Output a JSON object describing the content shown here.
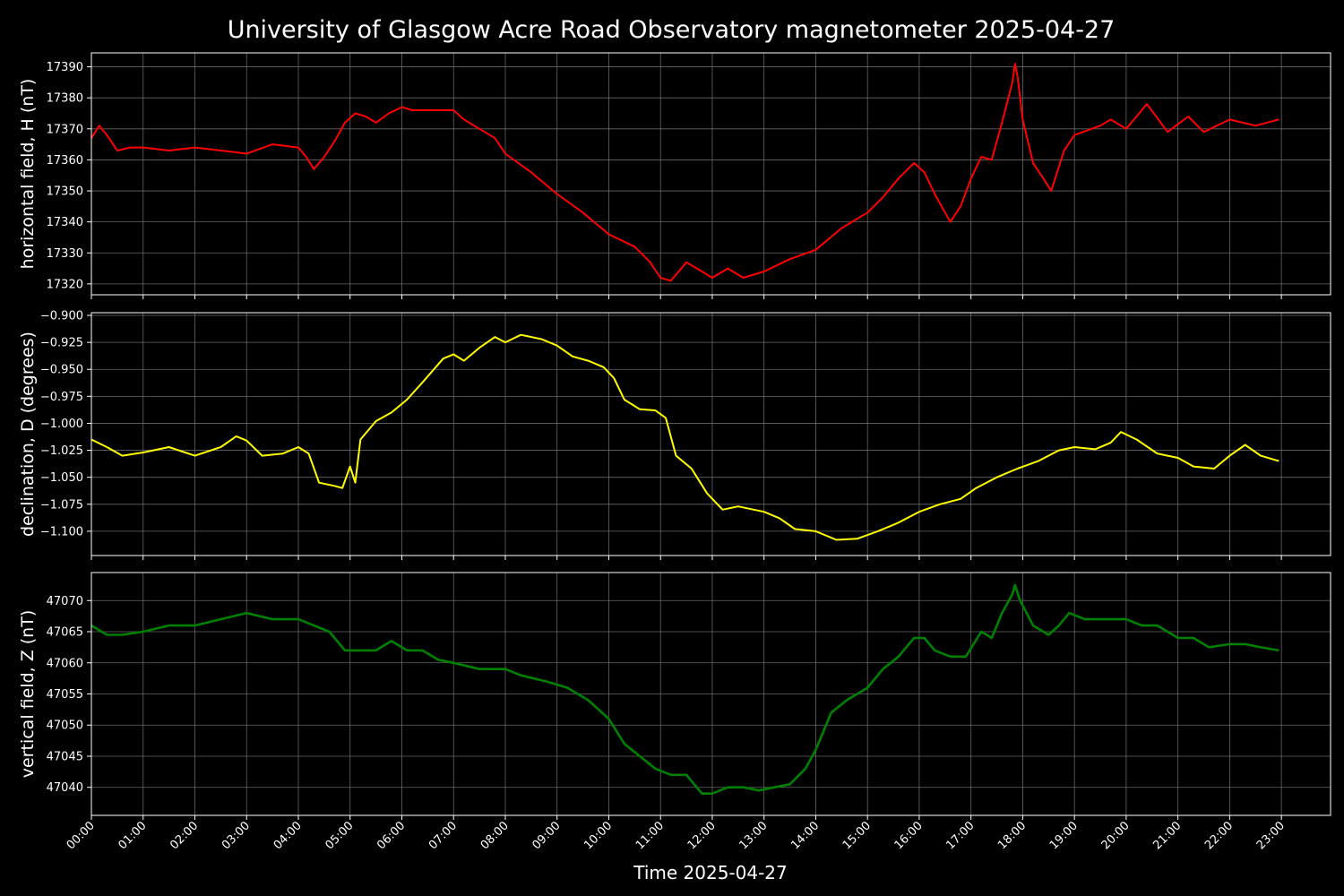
{
  "chart_data": {
    "type": "line",
    "title": "University of Glasgow Acre Road Observatory magnetometer 2025-04-27",
    "xlabel": "Time 2025-04-27",
    "x_unit": "hours",
    "xlim": [
      0,
      23.95
    ],
    "x_ticks": [
      {
        "value": 0,
        "label": "00:00"
      },
      {
        "value": 1,
        "label": "01:00"
      },
      {
        "value": 2,
        "label": "02:00"
      },
      {
        "value": 3,
        "label": "03:00"
      },
      {
        "value": 4,
        "label": "04:00"
      },
      {
        "value": 5,
        "label": "05:00"
      },
      {
        "value": 6,
        "label": "06:00"
      },
      {
        "value": 7,
        "label": "07:00"
      },
      {
        "value": 8,
        "label": "08:00"
      },
      {
        "value": 9,
        "label": "09:00"
      },
      {
        "value": 10,
        "label": "10:00"
      },
      {
        "value": 11,
        "label": "11:00"
      },
      {
        "value": 12,
        "label": "12:00"
      },
      {
        "value": 13,
        "label": "13:00"
      },
      {
        "value": 14,
        "label": "14:00"
      },
      {
        "value": 15,
        "label": "15:00"
      },
      {
        "value": 16,
        "label": "16:00"
      },
      {
        "value": 17,
        "label": "17:00"
      },
      {
        "value": 18,
        "label": "18:00"
      },
      {
        "value": 19,
        "label": "19:00"
      },
      {
        "value": 20,
        "label": "20:00"
      },
      {
        "value": 21,
        "label": "21:00"
      },
      {
        "value": 22,
        "label": "22:00"
      },
      {
        "value": 23,
        "label": "23:00"
      }
    ],
    "grid": true,
    "background": "#000000",
    "panels": [
      {
        "name": "horizontal",
        "ylabel": "horizontal field, H (nT)",
        "color": "#ff0000",
        "ylim": [
          17316.5,
          17394.5
        ],
        "yticks": [
          {
            "value": 17320,
            "label": "17320"
          },
          {
            "value": 17330,
            "label": "17330"
          },
          {
            "value": 17340,
            "label": "17340"
          },
          {
            "value": 17350,
            "label": "17350"
          },
          {
            "value": 17360,
            "label": "17360"
          },
          {
            "value": 17370,
            "label": "17370"
          },
          {
            "value": 17380,
            "label": "17380"
          },
          {
            "value": 17390,
            "label": "17390"
          }
        ],
        "x": [
          0,
          0.15,
          0.3,
          0.5,
          0.75,
          1.0,
          1.5,
          2.0,
          2.5,
          3.0,
          3.5,
          4.0,
          4.15,
          4.3,
          4.5,
          4.7,
          4.9,
          5.1,
          5.3,
          5.5,
          5.75,
          6.0,
          6.2,
          6.5,
          7.0,
          7.2,
          7.5,
          7.8,
          8.0,
          8.5,
          9.0,
          9.5,
          10.0,
          10.5,
          10.8,
          11.0,
          11.2,
          11.5,
          11.8,
          12.0,
          12.3,
          12.6,
          12.8,
          13.0,
          13.5,
          14.0,
          14.5,
          15.0,
          15.3,
          15.6,
          15.9,
          16.1,
          16.3,
          16.5,
          16.6,
          16.8,
          17.0,
          17.2,
          17.4,
          17.6,
          17.8,
          17.85,
          17.9,
          18.0,
          18.2,
          18.4,
          18.55,
          18.8,
          19.0,
          19.5,
          19.7,
          20.0,
          20.4,
          20.8,
          21.2,
          21.5,
          22.0,
          22.5,
          22.95
        ],
        "y": [
          17367,
          17371,
          17368,
          17363,
          17364,
          17364,
          17363,
          17364,
          17363,
          17362,
          17365,
          17364,
          17361,
          17357,
          17361,
          17366,
          17372,
          17375,
          17374,
          17372,
          17375,
          17377,
          17376,
          17376,
          17376,
          17373,
          17370,
          17367,
          17362,
          17356,
          17349,
          17343,
          17336,
          17332,
          17327,
          17322,
          17321,
          17327,
          17324,
          17322,
          17325,
          17322,
          17323,
          17324,
          17328,
          17331,
          17338,
          17343,
          17348,
          17354,
          17359,
          17356,
          17349,
          17343,
          17340,
          17345,
          17354,
          17361,
          17360,
          17372,
          17385,
          17391,
          17387,
          17373,
          17359,
          17354,
          17350,
          17363,
          17368,
          17371,
          17373,
          17370,
          17378,
          17369,
          17374,
          17369,
          17373,
          17371,
          17373
        ]
      },
      {
        "name": "declination",
        "ylabel": "declination, D (degrees)",
        "color": "#ffff00",
        "ylim": [
          -1.1225,
          -0.8975
        ],
        "yticks": [
          {
            "value": -1.1,
            "label": "−1.100"
          },
          {
            "value": -1.075,
            "label": "−1.075"
          },
          {
            "value": -1.05,
            "label": "−1.050"
          },
          {
            "value": -1.025,
            "label": "−1.025"
          },
          {
            "value": -1.0,
            "label": "−1.000"
          },
          {
            "value": -0.975,
            "label": "−0.975"
          },
          {
            "value": -0.95,
            "label": "−0.950"
          },
          {
            "value": -0.925,
            "label": "−0.925"
          },
          {
            "value": -0.9,
            "label": "−0.900"
          }
        ],
        "x": [
          0,
          0.3,
          0.6,
          1.0,
          1.5,
          2.0,
          2.5,
          2.8,
          3.0,
          3.3,
          3.7,
          4.0,
          4.2,
          4.4,
          4.7,
          4.85,
          5.0,
          5.1,
          5.2,
          5.5,
          5.8,
          6.1,
          6.4,
          6.8,
          7.0,
          7.2,
          7.5,
          7.8,
          8.0,
          8.3,
          8.7,
          9.0,
          9.3,
          9.6,
          9.9,
          10.1,
          10.3,
          10.6,
          10.9,
          11.1,
          11.3,
          11.6,
          11.9,
          12.2,
          12.5,
          13.0,
          13.3,
          13.6,
          14.0,
          14.4,
          14.8,
          15.2,
          15.6,
          16.0,
          16.4,
          16.8,
          17.1,
          17.5,
          17.9,
          18.3,
          18.7,
          19.0,
          19.4,
          19.7,
          19.9,
          20.2,
          20.6,
          21.0,
          21.3,
          21.7,
          22.0,
          22.3,
          22.6,
          22.95
        ],
        "y": [
          -1.015,
          -1.022,
          -1.03,
          -1.027,
          -1.022,
          -1.03,
          -1.022,
          -1.012,
          -1.016,
          -1.03,
          -1.028,
          -1.022,
          -1.028,
          -1.055,
          -1.058,
          -1.06,
          -1.04,
          -1.055,
          -1.015,
          -0.998,
          -0.99,
          -0.978,
          -0.962,
          -0.94,
          -0.936,
          -0.942,
          -0.93,
          -0.92,
          -0.925,
          -0.918,
          -0.922,
          -0.928,
          -0.938,
          -0.942,
          -0.948,
          -0.958,
          -0.978,
          -0.987,
          -0.988,
          -0.995,
          -1.03,
          -1.042,
          -1.065,
          -1.08,
          -1.077,
          -1.082,
          -1.088,
          -1.098,
          -1.1,
          -1.108,
          -1.107,
          -1.1,
          -1.092,
          -1.082,
          -1.075,
          -1.07,
          -1.06,
          -1.05,
          -1.042,
          -1.035,
          -1.025,
          -1.022,
          -1.024,
          -1.018,
          -1.008,
          -1.015,
          -1.028,
          -1.032,
          -1.04,
          -1.042,
          -1.03,
          -1.02,
          -1.03,
          -1.035
        ]
      },
      {
        "name": "vertical",
        "ylabel": "vertical field, Z (nT)",
        "color": "#008000",
        "ylim": [
          47035.5,
          47074.5
        ],
        "yticks": [
          {
            "value": 47040,
            "label": "47040"
          },
          {
            "value": 47045,
            "label": "47045"
          },
          {
            "value": 47050,
            "label": "47050"
          },
          {
            "value": 47055,
            "label": "47055"
          },
          {
            "value": 47060,
            "label": "47060"
          },
          {
            "value": 47065,
            "label": "47065"
          },
          {
            "value": 47070,
            "label": "47070"
          }
        ],
        "x": [
          0,
          0.3,
          0.6,
          1.0,
          1.5,
          2.0,
          2.5,
          3.0,
          3.5,
          4.0,
          4.3,
          4.6,
          4.9,
          5.1,
          5.3,
          5.5,
          5.8,
          6.1,
          6.4,
          6.7,
          7.0,
          7.5,
          8.0,
          8.3,
          8.8,
          9.2,
          9.6,
          10.0,
          10.3,
          10.6,
          10.9,
          11.2,
          11.5,
          11.8,
          12.0,
          12.3,
          12.6,
          12.9,
          13.2,
          13.5,
          13.8,
          14.0,
          14.3,
          14.6,
          15.0,
          15.3,
          15.6,
          15.9,
          16.1,
          16.3,
          16.6,
          16.9,
          17.2,
          17.4,
          17.6,
          17.8,
          17.85,
          17.95,
          18.2,
          18.5,
          18.7,
          18.9,
          19.2,
          19.6,
          20.0,
          20.3,
          20.6,
          21.0,
          21.3,
          21.6,
          22.0,
          22.3,
          22.6,
          22.95
        ],
        "y": [
          47066,
          47064.5,
          47064.5,
          47065,
          47066,
          47066,
          47067,
          47068,
          47067,
          47067,
          47066,
          47065,
          47062,
          47062,
          47062,
          47062,
          47063.5,
          47062,
          47062,
          47060.5,
          47060,
          47059,
          47059,
          47058,
          47057,
          47056,
          47054,
          47051,
          47047,
          47045,
          47043,
          47042,
          47042,
          47039,
          47039,
          47040,
          47040,
          47039.5,
          47040,
          47040.5,
          47043,
          47046,
          47052,
          47054,
          47056,
          47059,
          47061,
          47064,
          47064,
          47062,
          47061,
          47061,
          47065,
          47064,
          47068,
          47071,
          47072.5,
          47070,
          47066,
          47064.5,
          47066,
          47068,
          47067,
          47067,
          47067,
          47066,
          47066,
          47064,
          47064,
          47062.5,
          47063,
          47063,
          47062.5,
          47062
        ]
      }
    ]
  }
}
